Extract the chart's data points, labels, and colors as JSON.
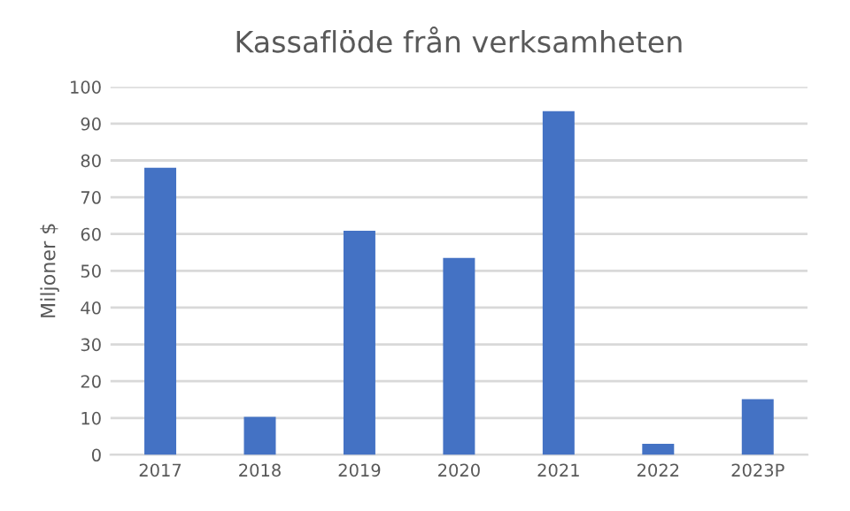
{
  "chart_data": {
    "type": "bar",
    "title": "Kassaflöde från verksamheten",
    "ylabel": "Miljoner $",
    "categories": [
      "2017",
      "2018",
      "2019",
      "2020",
      "2021",
      "2022",
      "2023P"
    ],
    "values": [
      78,
      10.3,
      60.9,
      53.5,
      93.4,
      3,
      15.1
    ],
    "color": "#4472c4",
    "ylim": [
      0,
      100
    ],
    "yticks": [
      0,
      10,
      20,
      30,
      40,
      50,
      60,
      70,
      80,
      90,
      100
    ],
    "grid": "y",
    "legend": false
  }
}
